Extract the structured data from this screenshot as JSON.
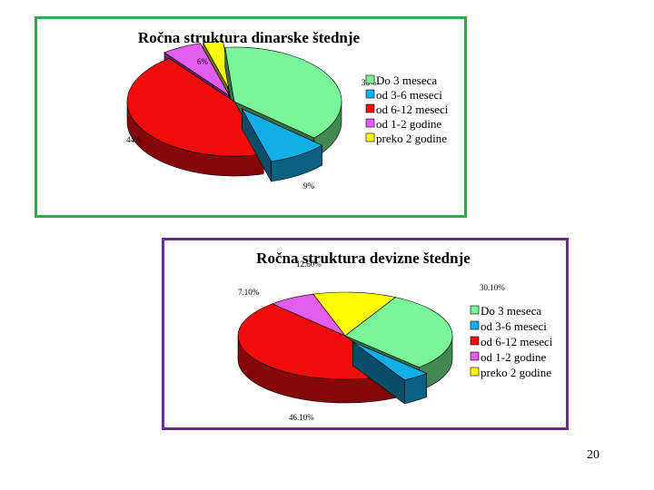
{
  "chart_data": [
    {
      "type": "pie",
      "title": "Ročna struktura dinarske štednje",
      "categories": [
        "Do 3 meseca",
        "od 3-6 meseci",
        "od 6-12 meseci",
        "od 1-2 godine",
        "preko 2 godine"
      ],
      "values": [
        38,
        9,
        44,
        6,
        3
      ],
      "data_labels": [
        "38%",
        "9%",
        "44%",
        "6%",
        ""
      ],
      "colors": [
        "#7af59a",
        "#12aee8",
        "#f20d0d",
        "#e45cf0",
        "#fffa00"
      ],
      "legend": "right"
    },
    {
      "type": "pie",
      "title": "Ročna struktura devizne štednje",
      "categories": [
        "Do 3 meseca",
        "od 3-6 meseci",
        "od 6-12 meseci",
        "od 1-2 godine",
        "preko 2 godine"
      ],
      "values": [
        30.1,
        4.1,
        46.1,
        7.1,
        12.6
      ],
      "data_labels": [
        "30.10%",
        "",
        "46.10%",
        "7.10%",
        "12.60%"
      ],
      "colors": [
        "#7af59a",
        "#12aee8",
        "#f20d0d",
        "#e45cf0",
        "#fffa00"
      ],
      "legend": "right"
    }
  ],
  "page_number": "20"
}
